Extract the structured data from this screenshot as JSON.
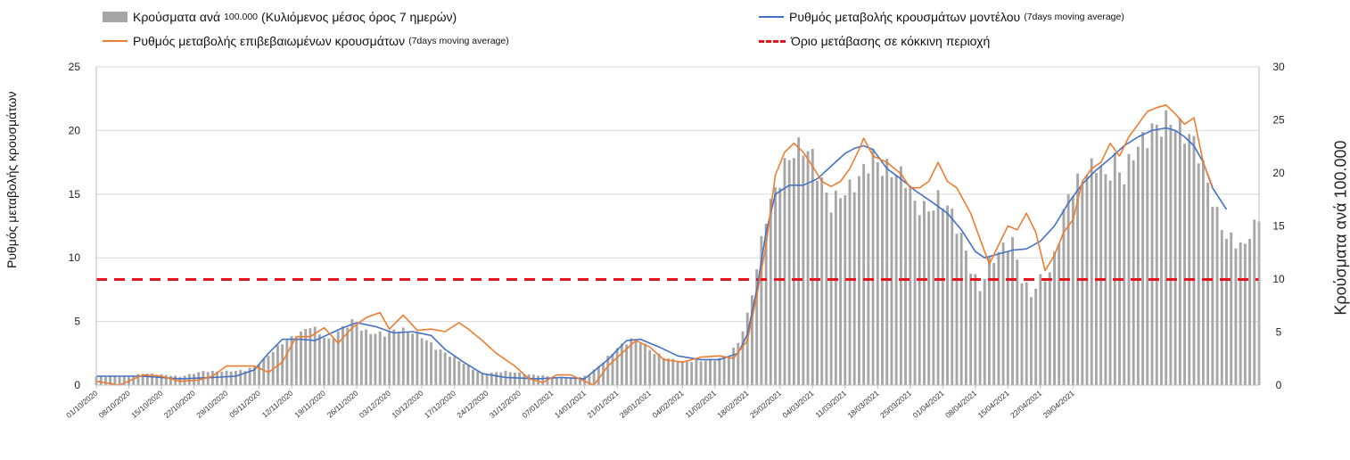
{
  "legend": {
    "bars": {
      "label": "Κρούσματα ανά",
      "label_small": "100.000",
      "label_rest": "(Κυλιόμενος μέσος όρος 7 ημερών)",
      "color": "#a6a6a6"
    },
    "model": {
      "label": "Ρυθμός μεταβολής κρουσμάτων μοντέλου",
      "label_small": "(7days moving average)",
      "color": "#4472c4"
    },
    "confirmed": {
      "label": "Ρυθμός μεταβολής επιβεβαιωμένων κρουσμάτων",
      "label_small": "(7days moving average)",
      "color": "#ed7d31"
    },
    "threshold": {
      "label": "Όριο μετάβασης σε κόκκινη περιοχή",
      "color": "#e8141b"
    }
  },
  "chart_data": {
    "type": "bar+line",
    "ylabel": "Ρυθμός μεταβολής κρουσμάτων",
    "ylabel_right": "Κρούσματα ανά 100.000",
    "ylim_left": [
      0,
      25
    ],
    "ylim_right": [
      0,
      30
    ],
    "yticks_left": [
      "0",
      "5",
      "10",
      "15",
      "20",
      "25"
    ],
    "yticks_right": [
      "0",
      "5",
      "10",
      "15",
      "20",
      "25",
      "30"
    ],
    "grid": true,
    "legend_position": "top",
    "threshold_left": 8.3,
    "xtick_labels": [
      "01/10/2020",
      "08/10/2020",
      "15/10/2020",
      "22/10/2020",
      "29/10/2020",
      "05/11/2020",
      "12/11/2020",
      "19/11/2020",
      "26/11/2020",
      "03/12/2020",
      "10/12/2020",
      "17/12/2020",
      "24/12/2020",
      "31/12/2020",
      "07/01/2021",
      "14/01/2021",
      "21/01/2021",
      "28/01/2021",
      "04/02/2021",
      "11/02/2021",
      "18/02/2021",
      "25/02/2021",
      "04/03/2021",
      "11/03/2021",
      "18/03/2021",
      "25/03/2021",
      "01/04/2021",
      "08/04/2021",
      "15/04/2021",
      "22/04/2021",
      "29/04/2021"
    ],
    "days_per_tick": 7,
    "total_days": 212,
    "bars_right_axis_keypoints": [
      [
        0,
        0.8
      ],
      [
        7,
        0.8
      ],
      [
        10,
        1.1
      ],
      [
        14,
        1.0
      ],
      [
        18,
        0.8
      ],
      [
        23,
        1.3
      ],
      [
        28,
        1.3
      ],
      [
        32,
        1.4
      ],
      [
        35,
        2.0
      ],
      [
        40,
        4.0
      ],
      [
        44,
        4.9
      ],
      [
        46,
        5.6
      ],
      [
        50,
        4.2
      ],
      [
        53,
        5.4
      ],
      [
        55,
        6.0
      ],
      [
        58,
        5.0
      ],
      [
        62,
        4.8
      ],
      [
        65,
        5.3
      ],
      [
        68,
        5.0
      ],
      [
        70,
        4.6
      ],
      [
        73,
        3.5
      ],
      [
        76,
        2.8
      ],
      [
        80,
        1.8
      ],
      [
        83,
        1.0
      ],
      [
        86,
        1.2
      ],
      [
        88,
        1.3
      ],
      [
        90,
        1.2
      ],
      [
        93,
        1.0
      ],
      [
        96,
        0.9
      ],
      [
        99,
        0.7
      ],
      [
        103,
        0.6
      ],
      [
        106,
        1.0
      ],
      [
        109,
        2.2
      ],
      [
        112,
        3.5
      ],
      [
        115,
        4.3
      ],
      [
        117,
        4.1
      ],
      [
        120,
        3.0
      ],
      [
        123,
        2.5
      ],
      [
        126,
        2.2
      ],
      [
        130,
        2.3
      ],
      [
        133,
        2.4
      ],
      [
        136,
        2.8
      ],
      [
        138,
        4.0
      ],
      [
        140,
        6.5
      ],
      [
        142,
        11.0
      ],
      [
        144,
        16.0
      ],
      [
        147,
        19.5
      ],
      [
        149,
        21.5
      ],
      [
        150,
        22.0
      ],
      [
        152,
        22.5
      ],
      [
        154,
        21.5
      ],
      [
        156,
        19.0
      ],
      [
        158,
        17.0
      ],
      [
        160,
        18.0
      ],
      [
        162,
        18.5
      ],
      [
        164,
        19.5
      ],
      [
        166,
        21.0
      ],
      [
        167,
        21.5
      ],
      [
        169,
        20.5
      ],
      [
        172,
        20.0
      ],
      [
        174,
        19.5
      ],
      [
        176,
        17.0
      ],
      [
        179,
        16.5
      ],
      [
        181,
        17.5
      ],
      [
        183,
        17.0
      ],
      [
        186,
        14.0
      ],
      [
        188,
        11.0
      ],
      [
        190,
        9.0
      ],
      [
        192,
        11.5
      ],
      [
        195,
        13.0
      ],
      [
        197,
        13.5
      ],
      [
        199,
        10.0
      ],
      [
        201,
        8.5
      ],
      [
        203,
        10.0
      ],
      [
        205,
        10.5
      ],
      [
        207,
        14.0
      ],
      [
        209,
        18.0
      ],
      [
        211,
        19.0
      ],
      [
        213,
        20.0
      ],
      [
        215,
        21.0
      ],
      [
        217,
        19.5
      ],
      [
        219,
        21.0
      ],
      [
        221,
        19.5
      ],
      [
        223,
        22.0
      ],
      [
        225,
        23.0
      ],
      [
        227,
        24.0
      ],
      [
        229,
        24.5
      ],
      [
        231,
        25.0
      ],
      [
        233,
        24.0
      ],
      [
        235,
        23.5
      ],
      [
        237,
        22.0
      ],
      [
        239,
        19.0
      ],
      [
        241,
        16.0
      ],
      [
        243,
        14.0
      ],
      [
        245,
        13.5
      ],
      [
        247,
        13.0
      ],
      [
        248,
        14.5
      ],
      [
        250,
        15.5
      ]
    ],
    "series": [
      {
        "name": "Ρυθμός μεταβολής κρουσμάτων μοντέλου",
        "axis": "left",
        "keypoints": [
          [
            0,
            0.7
          ],
          [
            10,
            0.7
          ],
          [
            18,
            0.5
          ],
          [
            25,
            0.6
          ],
          [
            30,
            0.7
          ],
          [
            34,
            1.2
          ],
          [
            37,
            2.5
          ],
          [
            40,
            3.6
          ],
          [
            44,
            3.6
          ],
          [
            47,
            3.5
          ],
          [
            50,
            4.0
          ],
          [
            53,
            4.5
          ],
          [
            56,
            4.9
          ],
          [
            60,
            4.6
          ],
          [
            64,
            4.1
          ],
          [
            68,
            4.2
          ],
          [
            72,
            3.9
          ],
          [
            75,
            2.8
          ],
          [
            79,
            1.8
          ],
          [
            83,
            0.9
          ],
          [
            88,
            0.6
          ],
          [
            95,
            0.5
          ],
          [
            100,
            0.6
          ],
          [
            105,
            0.5
          ],
          [
            110,
            2.0
          ],
          [
            114,
            3.5
          ],
          [
            117,
            3.6
          ],
          [
            121,
            3.0
          ],
          [
            125,
            2.3
          ],
          [
            130,
            2.0
          ],
          [
            134,
            2.0
          ],
          [
            138,
            2.5
          ],
          [
            140,
            4.0
          ],
          [
            142,
            7.5
          ],
          [
            144,
            12.0
          ],
          [
            146,
            15.0
          ],
          [
            149,
            15.7
          ],
          [
            152,
            15.7
          ],
          [
            155,
            16.2
          ],
          [
            158,
            17.2
          ],
          [
            161,
            18.2
          ],
          [
            163,
            18.6
          ],
          [
            165,
            18.8
          ],
          [
            167,
            18.5
          ],
          [
            170,
            17.0
          ],
          [
            173,
            16.2
          ],
          [
            176,
            15.3
          ],
          [
            180,
            14.3
          ],
          [
            183,
            13.5
          ],
          [
            186,
            12.2
          ],
          [
            189,
            10.5
          ],
          [
            191,
            10.0
          ],
          [
            194,
            10.3
          ],
          [
            197,
            10.6
          ],
          [
            200,
            10.7
          ],
          [
            203,
            11.3
          ],
          [
            206,
            12.5
          ],
          [
            209,
            14.3
          ],
          [
            212,
            15.8
          ],
          [
            215,
            16.9
          ],
          [
            218,
            17.8
          ],
          [
            221,
            18.8
          ],
          [
            224,
            19.5
          ],
          [
            227,
            20.0
          ],
          [
            230,
            20.2
          ],
          [
            232,
            20.0
          ],
          [
            234,
            19.5
          ],
          [
            236,
            18.8
          ],
          [
            238,
            17.5
          ],
          [
            240,
            15.5
          ],
          [
            243,
            13.8
          ]
        ]
      },
      {
        "name": "Ρυθμός μεταβολής επιβεβαιωμένων κρουσμάτων",
        "axis": "left",
        "keypoints": [
          [
            0,
            0.3
          ],
          [
            5,
            0.0
          ],
          [
            10,
            0.8
          ],
          [
            14,
            0.7
          ],
          [
            18,
            0.3
          ],
          [
            22,
            0.4
          ],
          [
            25,
            0.7
          ],
          [
            28,
            1.5
          ],
          [
            31,
            1.5
          ],
          [
            34,
            1.5
          ],
          [
            37,
            1.0
          ],
          [
            40,
            1.8
          ],
          [
            43,
            3.8
          ],
          [
            46,
            3.8
          ],
          [
            49,
            4.5
          ],
          [
            52,
            3.3
          ],
          [
            55,
            4.5
          ],
          [
            58,
            5.3
          ],
          [
            61,
            5.7
          ],
          [
            63,
            4.4
          ],
          [
            66,
            5.5
          ],
          [
            69,
            4.3
          ],
          [
            72,
            4.4
          ],
          [
            75,
            4.2
          ],
          [
            78,
            4.9
          ],
          [
            80,
            4.4
          ],
          [
            83,
            3.5
          ],
          [
            86,
            2.5
          ],
          [
            90,
            1.5
          ],
          [
            93,
            0.5
          ],
          [
            96,
            0.2
          ],
          [
            99,
            0.8
          ],
          [
            102,
            0.8
          ],
          [
            105,
            0.3
          ],
          [
            107,
            0.0
          ],
          [
            110,
            1.5
          ],
          [
            113,
            2.5
          ],
          [
            116,
            3.5
          ],
          [
            119,
            3.0
          ],
          [
            122,
            2.0
          ],
          [
            126,
            1.8
          ],
          [
            130,
            2.2
          ],
          [
            134,
            2.3
          ],
          [
            137,
            2.1
          ],
          [
            140,
            3.5
          ],
          [
            142,
            7.0
          ],
          [
            144,
            11.0
          ],
          [
            146,
            16.5
          ],
          [
            148,
            18.3
          ],
          [
            150,
            19.0
          ],
          [
            152,
            18.3
          ],
          [
            154,
            17.2
          ],
          [
            156,
            16.0
          ],
          [
            158,
            15.6
          ],
          [
            160,
            16.0
          ],
          [
            162,
            17.0
          ],
          [
            164,
            18.5
          ],
          [
            165,
            19.4
          ],
          [
            167,
            18.0
          ],
          [
            170,
            17.5
          ],
          [
            173,
            16.6
          ],
          [
            175,
            15.5
          ],
          [
            177,
            15.5
          ],
          [
            179,
            16.0
          ],
          [
            181,
            17.5
          ],
          [
            183,
            16.0
          ],
          [
            185,
            15.5
          ],
          [
            188,
            13.5
          ],
          [
            190,
            11.5
          ],
          [
            192,
            9.5
          ],
          [
            194,
            11.0
          ],
          [
            196,
            12.5
          ],
          [
            198,
            12.2
          ],
          [
            200,
            13.5
          ],
          [
            202,
            12.0
          ],
          [
            204,
            9.0
          ],
          [
            206,
            10.2
          ],
          [
            208,
            12.0
          ],
          [
            210,
            13.0
          ],
          [
            212,
            16.0
          ],
          [
            214,
            17.0
          ],
          [
            216,
            17.5
          ],
          [
            218,
            19.0
          ],
          [
            220,
            18.0
          ],
          [
            222,
            19.5
          ],
          [
            224,
            20.5
          ],
          [
            226,
            21.5
          ],
          [
            228,
            21.8
          ],
          [
            230,
            22.0
          ],
          [
            232,
            21.3
          ],
          [
            234,
            20.5
          ],
          [
            236,
            21.0
          ],
          [
            238,
            17.5
          ],
          [
            240,
            15.6
          ]
        ]
      }
    ]
  }
}
